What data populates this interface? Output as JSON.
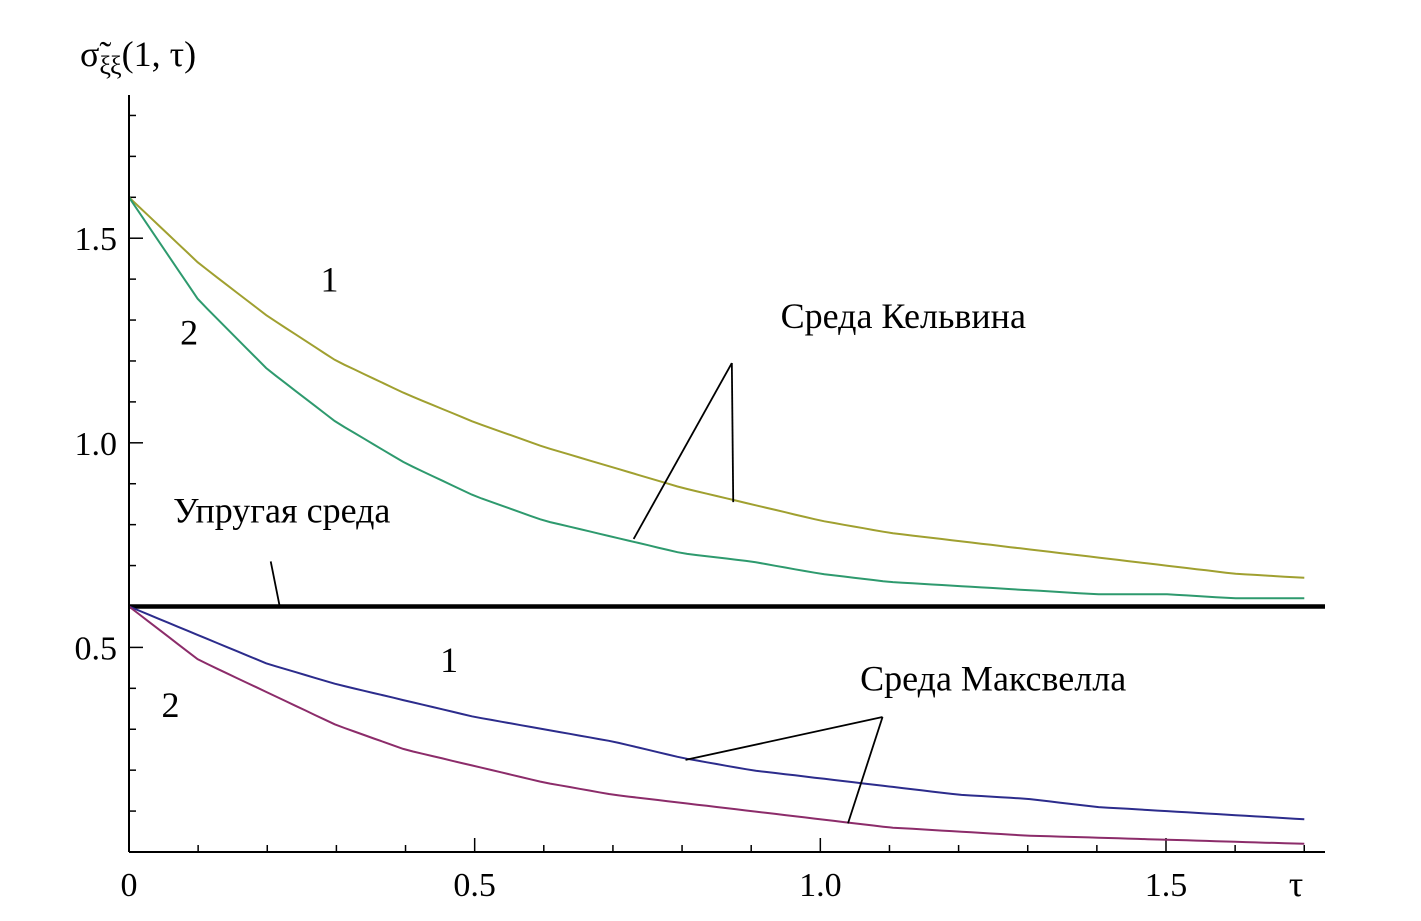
{
  "chart_data": {
    "type": "line",
    "ylabel": {
      "main": "σ̃",
      "subscript": "ξξ",
      "args": "(1, τ)"
    },
    "xlabel": "τ",
    "xlim": [
      0,
      1.73
    ],
    "ylim": [
      0,
      1.85
    ],
    "x_major_ticks": [
      {
        "value": 0,
        "label": "0"
      },
      {
        "value": 0.5,
        "label": "0.5"
      },
      {
        "value": 1.0,
        "label": "1.0"
      },
      {
        "value": 1.5,
        "label": "1.5"
      }
    ],
    "y_major_ticks": [
      {
        "value": 0.5,
        "label": "0.5"
      },
      {
        "value": 1.0,
        "label": "1.0"
      },
      {
        "value": 1.5,
        "label": "1.5"
      }
    ],
    "x_minor_step": 0.1,
    "y_minor_step": 0.1,
    "grid": false,
    "colors": {
      "kelvin_1": "#a0a030",
      "kelvin_2": "#2e9a6e",
      "elastic": "#000000",
      "maxwell_1": "#2c2c8c",
      "maxwell_2": "#8c2c6a"
    },
    "series": [
      {
        "id": "kelvin_1",
        "x": [
          0,
          0.1,
          0.2,
          0.3,
          0.4,
          0.5,
          0.6,
          0.7,
          0.8,
          0.9,
          1.0,
          1.1,
          1.2,
          1.3,
          1.4,
          1.5,
          1.6,
          1.7
        ],
        "values": [
          1.6,
          1.44,
          1.31,
          1.2,
          1.12,
          1.05,
          0.99,
          0.94,
          0.89,
          0.85,
          0.81,
          0.78,
          0.76,
          0.74,
          0.72,
          0.7,
          0.68,
          0.67
        ]
      },
      {
        "id": "kelvin_2",
        "x": [
          0,
          0.1,
          0.2,
          0.3,
          0.4,
          0.5,
          0.6,
          0.7,
          0.8,
          0.9,
          1.0,
          1.1,
          1.2,
          1.3,
          1.4,
          1.5,
          1.6,
          1.7
        ],
        "values": [
          1.6,
          1.35,
          1.18,
          1.05,
          0.95,
          0.87,
          0.81,
          0.77,
          0.73,
          0.71,
          0.68,
          0.66,
          0.65,
          0.64,
          0.63,
          0.63,
          0.62,
          0.62
        ]
      },
      {
        "id": "elastic",
        "x": [
          0,
          1.73
        ],
        "values": [
          0.6,
          0.6
        ]
      },
      {
        "id": "maxwell_1",
        "x": [
          0,
          0.1,
          0.2,
          0.3,
          0.4,
          0.5,
          0.6,
          0.7,
          0.8,
          0.9,
          1.0,
          1.1,
          1.2,
          1.3,
          1.4,
          1.5,
          1.6,
          1.7
        ],
        "values": [
          0.6,
          0.53,
          0.46,
          0.41,
          0.37,
          0.33,
          0.3,
          0.27,
          0.23,
          0.2,
          0.18,
          0.16,
          0.14,
          0.13,
          0.11,
          0.1,
          0.09,
          0.08
        ]
      },
      {
        "id": "maxwell_2",
        "x": [
          0,
          0.1,
          0.2,
          0.3,
          0.4,
          0.5,
          0.6,
          0.7,
          0.8,
          0.9,
          1.0,
          1.1,
          1.2,
          1.3,
          1.4,
          1.5,
          1.6,
          1.7
        ],
        "values": [
          0.6,
          0.47,
          0.39,
          0.31,
          0.25,
          0.21,
          0.17,
          0.14,
          0.12,
          0.1,
          0.08,
          0.06,
          0.05,
          0.04,
          0.035,
          0.03,
          0.025,
          0.02
        ]
      }
    ],
    "curve_labels": [
      {
        "series": "kelvin_1",
        "text": "1",
        "x": 0.29,
        "y": 1.37
      },
      {
        "series": "kelvin_2",
        "text": "2",
        "x": 0.087,
        "y": 1.24
      },
      {
        "series": "maxwell_1",
        "text": "1",
        "x": 0.463,
        "y": 0.44
      },
      {
        "series": "maxwell_2",
        "text": "2",
        "x": 0.06,
        "y": 0.33
      }
    ],
    "annotations": [
      {
        "text": "Среда Кельвина",
        "x": 1.12,
        "y": 1.28,
        "pointer_from": [
          0.872,
          1.195
        ],
        "pointer_to": [
          [
            0.874,
            0.855
          ],
          [
            0.73,
            0.765
          ]
        ]
      },
      {
        "text": "Упругая среда",
        "x": 0.221,
        "y": 0.805,
        "pointer_from": [
          0.205,
          0.71
        ],
        "pointer_to": [
          [
            0.218,
            0.6
          ]
        ]
      },
      {
        "text": "Среда Максвелла",
        "x": 1.25,
        "y": 0.395,
        "pointer_from": [
          1.09,
          0.33
        ],
        "pointer_to": [
          [
            0.805,
            0.225
          ],
          [
            1.04,
            0.07
          ]
        ]
      }
    ]
  }
}
